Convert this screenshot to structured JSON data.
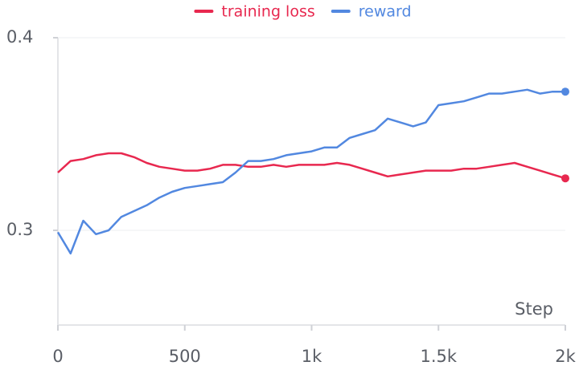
{
  "chart_data": {
    "type": "line",
    "x_label": "Step",
    "x": [
      0,
      50,
      100,
      150,
      200,
      250,
      300,
      350,
      400,
      450,
      500,
      550,
      600,
      650,
      700,
      750,
      800,
      850,
      900,
      950,
      1000,
      1050,
      1100,
      1150,
      1200,
      1250,
      1300,
      1350,
      1400,
      1450,
      1500,
      1550,
      1600,
      1650,
      1700,
      1750,
      1800,
      1850,
      1900,
      1950,
      2000
    ],
    "series": [
      {
        "name": "training loss",
        "color": "#e8284f",
        "values": [
          0.33,
          0.336,
          0.337,
          0.339,
          0.34,
          0.34,
          0.338,
          0.335,
          0.333,
          0.332,
          0.331,
          0.331,
          0.332,
          0.334,
          0.334,
          0.333,
          0.333,
          0.334,
          0.333,
          0.334,
          0.334,
          0.334,
          0.335,
          0.334,
          0.332,
          0.33,
          0.328,
          0.329,
          0.33,
          0.331,
          0.331,
          0.331,
          0.332,
          0.332,
          0.333,
          0.334,
          0.335,
          0.333,
          0.331,
          0.329,
          0.327
        ]
      },
      {
        "name": "reward",
        "color": "#5288e0",
        "values": [
          0.299,
          0.288,
          0.305,
          0.298,
          0.3,
          0.307,
          0.31,
          0.313,
          0.317,
          0.32,
          0.322,
          0.323,
          0.324,
          0.325,
          0.33,
          0.336,
          0.336,
          0.337,
          0.339,
          0.34,
          0.341,
          0.343,
          0.343,
          0.348,
          0.35,
          0.352,
          0.358,
          0.356,
          0.354,
          0.356,
          0.365,
          0.366,
          0.367,
          0.369,
          0.371,
          0.371,
          0.372,
          0.373,
          0.371,
          0.372,
          0.372
        ]
      }
    ],
    "xlim": [
      0,
      2000
    ],
    "xticks": [
      0,
      500,
      {
        "value": 1000,
        "label": "1k"
      },
      {
        "value": 1500,
        "label": "1.5k"
      },
      {
        "value": 2000,
        "label": "2k"
      }
    ],
    "ylim": [
      0.25,
      0.4
    ],
    "yticks": [
      0.3,
      0.4
    ],
    "grid": true
  }
}
